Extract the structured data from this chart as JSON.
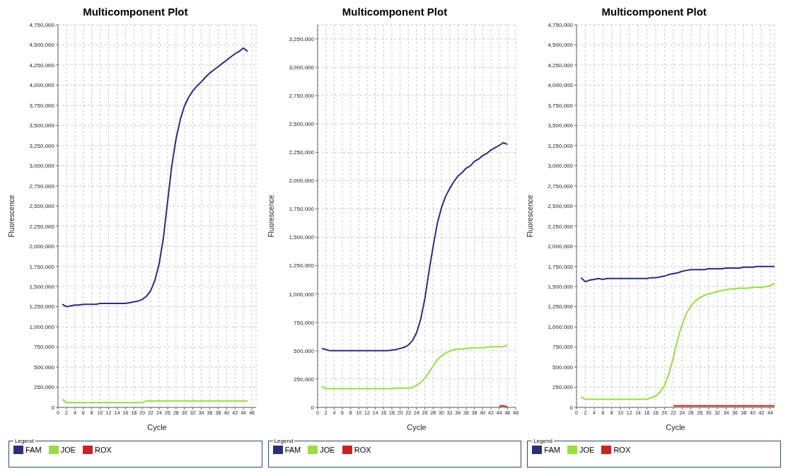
{
  "chart_data": [
    {
      "type": "line",
      "title": "Multicomponent Plot",
      "xlabel": "Cycle",
      "ylabel": "Fluorescence",
      "legend_title": "Legend",
      "legend": "bottom",
      "grid": true,
      "marker": "none",
      "line_style": "solid",
      "x": [
        1,
        2,
        3,
        4,
        5,
        6,
        7,
        8,
        9,
        10,
        11,
        12,
        13,
        14,
        15,
        16,
        17,
        18,
        19,
        20,
        21,
        22,
        23,
        24,
        25,
        26,
        27,
        28,
        29,
        30,
        31,
        32,
        33,
        34,
        35,
        36,
        37,
        38,
        39,
        40,
        41,
        42,
        43,
        44,
        45
      ],
      "xlim": [
        0,
        47
      ],
      "xticks": [
        0,
        2,
        4,
        6,
        8,
        10,
        12,
        14,
        16,
        18,
        20,
        22,
        24,
        26,
        28,
        30,
        32,
        34,
        36,
        38,
        40,
        42,
        44,
        46
      ],
      "ylim": [
        0,
        4750000
      ],
      "yticks": [
        {
          "value": 0,
          "label": "0"
        },
        {
          "value": 250000,
          "label": "250,000"
        },
        {
          "value": 500000,
          "label": "500,000"
        },
        {
          "value": 750000,
          "label": "750,000"
        },
        {
          "value": 1000000,
          "label": "1,000,000"
        },
        {
          "value": 1250000,
          "label": "1,250,000"
        },
        {
          "value": 1500000,
          "label": "1,500,000"
        },
        {
          "value": 1750000,
          "label": "1,750,000"
        },
        {
          "value": 2000000,
          "label": "2,000,000"
        },
        {
          "value": 2250000,
          "label": "2,250,000"
        },
        {
          "value": 2500000,
          "label": "2,500,000"
        },
        {
          "value": 2750000,
          "label": "2,750,000"
        },
        {
          "value": 3000000,
          "label": "3,000,000"
        },
        {
          "value": 3250000,
          "label": "3,250,000"
        },
        {
          "value": 3500000,
          "label": "3,500,000"
        },
        {
          "value": 3750000,
          "label": "3,750,000"
        },
        {
          "value": 4000000,
          "label": "4,000,000"
        },
        {
          "value": 4250000,
          "label": "4,250,000"
        },
        {
          "value": 4500000,
          "label": "4,500,000"
        },
        {
          "value": 4750000,
          "label": "4,750,000"
        }
      ],
      "series": [
        {
          "name": "FAM",
          "color": "#2b2f7a",
          "values": [
            1280000,
            1250000,
            1260000,
            1270000,
            1270000,
            1280000,
            1280000,
            1280000,
            1280000,
            1290000,
            1290000,
            1290000,
            1290000,
            1290000,
            1290000,
            1290000,
            1300000,
            1310000,
            1320000,
            1340000,
            1380000,
            1450000,
            1580000,
            1780000,
            2100000,
            2550000,
            3000000,
            3330000,
            3570000,
            3740000,
            3850000,
            3930000,
            3990000,
            4040000,
            4100000,
            4150000,
            4190000,
            4230000,
            4270000,
            4310000,
            4350000,
            4390000,
            4420000,
            4460000,
            4420000
          ]
        },
        {
          "name": "JOE",
          "color": "#99dd44",
          "values": [
            100000,
            60000,
            60000,
            60000,
            60000,
            60000,
            60000,
            60000,
            60000,
            60000,
            60000,
            60000,
            60000,
            60000,
            60000,
            60000,
            60000,
            60000,
            60000,
            60000,
            80000,
            80000,
            80000,
            80000,
            80000,
            80000,
            80000,
            80000,
            80000,
            80000,
            80000,
            80000,
            80000,
            80000,
            80000,
            80000,
            80000,
            80000,
            80000,
            80000,
            80000,
            80000,
            80000,
            80000,
            80000
          ]
        },
        {
          "name": "ROX",
          "color": "#cc2222",
          "values": [
            null,
            null,
            null,
            null,
            null,
            null,
            null,
            null,
            null,
            null,
            null,
            null,
            null,
            null,
            null,
            null,
            null,
            null,
            null,
            null,
            null,
            null,
            null,
            null,
            null,
            null,
            null,
            null,
            null,
            null,
            null,
            null,
            null,
            null,
            null,
            null,
            null,
            null,
            null,
            null,
            null,
            null,
            null,
            null,
            null
          ]
        }
      ]
    },
    {
      "type": "line",
      "title": "Multicomponent Plot",
      "xlabel": "Cycle",
      "ylabel": "Fluorescence",
      "legend_title": "Legend",
      "legend": "bottom",
      "grid": true,
      "marker": "none",
      "line_style": "solid",
      "x": [
        1,
        2,
        3,
        4,
        5,
        6,
        7,
        8,
        9,
        10,
        11,
        12,
        13,
        14,
        15,
        16,
        17,
        18,
        19,
        20,
        21,
        22,
        23,
        24,
        25,
        26,
        27,
        28,
        29,
        30,
        31,
        32,
        33,
        34,
        35,
        36,
        37,
        38,
        39,
        40,
        41,
        42,
        43,
        44,
        45,
        46
      ],
      "xlim": [
        0,
        48
      ],
      "xticks": [
        0,
        2,
        4,
        6,
        8,
        10,
        12,
        14,
        16,
        18,
        20,
        22,
        24,
        26,
        28,
        30,
        32,
        34,
        36,
        38,
        40,
        42,
        44,
        46,
        48
      ],
      "ylim": [
        0,
        3375000
      ],
      "yticks": [
        {
          "value": 0,
          "label": "0"
        },
        {
          "value": 250000,
          "label": "250,000"
        },
        {
          "value": 500000,
          "label": "500,000"
        },
        {
          "value": 750000,
          "label": "750,000"
        },
        {
          "value": 1000000,
          "label": "1,000,000"
        },
        {
          "value": 1250000,
          "label": "1,250,000"
        },
        {
          "value": 1500000,
          "label": "1,500,000"
        },
        {
          "value": 1750000,
          "label": "1,750,000"
        },
        {
          "value": 2000000,
          "label": "2,000,000"
        },
        {
          "value": 2250000,
          "label": "2,250,000"
        },
        {
          "value": 2500000,
          "label": "2,500,000"
        },
        {
          "value": 2750000,
          "label": "2,750,000"
        },
        {
          "value": 3000000,
          "label": "3,000,000"
        },
        {
          "value": 3250000,
          "label": "3,250,000"
        }
      ],
      "series": [
        {
          "name": "FAM",
          "color": "#2b2f7a",
          "values": [
            520000,
            510000,
            500000,
            500000,
            500000,
            500000,
            500000,
            500000,
            500000,
            500000,
            500000,
            500000,
            500000,
            500000,
            500000,
            500000,
            500000,
            505000,
            510000,
            520000,
            530000,
            550000,
            590000,
            660000,
            780000,
            960000,
            1200000,
            1420000,
            1620000,
            1760000,
            1860000,
            1930000,
            1990000,
            2040000,
            2070000,
            2110000,
            2130000,
            2170000,
            2190000,
            2220000,
            2240000,
            2270000,
            2290000,
            2310000,
            2335000,
            2320000
          ]
        },
        {
          "name": "JOE",
          "color": "#99dd44",
          "values": [
            185000,
            165000,
            165000,
            165000,
            165000,
            165000,
            165000,
            165000,
            165000,
            165000,
            165000,
            165000,
            165000,
            165000,
            165000,
            165000,
            165000,
            165000,
            170000,
            170000,
            170000,
            170000,
            175000,
            195000,
            220000,
            260000,
            310000,
            365000,
            420000,
            455000,
            480000,
            495000,
            510000,
            515000,
            515000,
            520000,
            525000,
            525000,
            525000,
            525000,
            530000,
            535000,
            535000,
            535000,
            535000,
            550000
          ]
        },
        {
          "name": "ROX",
          "color": "#cc2222",
          "values": [
            null,
            null,
            null,
            null,
            null,
            null,
            null,
            null,
            null,
            null,
            null,
            null,
            null,
            null,
            null,
            null,
            null,
            null,
            null,
            null,
            null,
            null,
            null,
            null,
            null,
            null,
            null,
            null,
            null,
            null,
            null,
            null,
            null,
            null,
            null,
            null,
            null,
            null,
            null,
            null,
            null,
            null,
            null,
            10000,
            15000,
            5000
          ]
        }
      ]
    },
    {
      "type": "line",
      "title": "Multicomponent Plot",
      "xlabel": "Cycle",
      "ylabel": "Fluorescence",
      "legend_title": "Legend",
      "legend": "bottom",
      "grid": true,
      "marker": "none",
      "line_style": "solid",
      "x": [
        1,
        2,
        3,
        4,
        5,
        6,
        7,
        8,
        9,
        10,
        11,
        12,
        13,
        14,
        15,
        16,
        17,
        18,
        19,
        20,
        21,
        22,
        23,
        24,
        25,
        26,
        27,
        28,
        29,
        30,
        31,
        32,
        33,
        34,
        35,
        36,
        37,
        38,
        39,
        40,
        41,
        42,
        43,
        44,
        45
      ],
      "xlim": [
        0,
        45
      ],
      "xticks": [
        0,
        2,
        4,
        6,
        8,
        10,
        12,
        14,
        16,
        18,
        20,
        22,
        24,
        26,
        28,
        30,
        32,
        34,
        36,
        38,
        40,
        42,
        44
      ],
      "ylim": [
        0,
        4750000
      ],
      "yticks": [
        {
          "value": 0,
          "label": "0"
        },
        {
          "value": 250000,
          "label": "250,000"
        },
        {
          "value": 500000,
          "label": "500,000"
        },
        {
          "value": 750000,
          "label": "750,000"
        },
        {
          "value": 1000000,
          "label": "1,000,000"
        },
        {
          "value": 1250000,
          "label": "1,250,000"
        },
        {
          "value": 1500000,
          "label": "1,500,000"
        },
        {
          "value": 1750000,
          "label": "1,750,000"
        },
        {
          "value": 2000000,
          "label": "2,000,000"
        },
        {
          "value": 2250000,
          "label": "2,250,000"
        },
        {
          "value": 2500000,
          "label": "2,500,000"
        },
        {
          "value": 2750000,
          "label": "2,750,000"
        },
        {
          "value": 3000000,
          "label": "3,000,000"
        },
        {
          "value": 3250000,
          "label": "3,250,000"
        },
        {
          "value": 3500000,
          "label": "3,500,000"
        },
        {
          "value": 3750000,
          "label": "3,750,000"
        },
        {
          "value": 4000000,
          "label": "4,000,000"
        },
        {
          "value": 4250000,
          "label": "4,250,000"
        },
        {
          "value": 4500000,
          "label": "4,500,000"
        },
        {
          "value": 4750000,
          "label": "4,750,000"
        }
      ],
      "series": [
        {
          "name": "FAM",
          "color": "#2b2f7a",
          "values": [
            1610000,
            1560000,
            1580000,
            1590000,
            1600000,
            1590000,
            1600000,
            1600000,
            1600000,
            1600000,
            1600000,
            1600000,
            1600000,
            1600000,
            1600000,
            1600000,
            1610000,
            1610000,
            1620000,
            1630000,
            1650000,
            1660000,
            1670000,
            1690000,
            1700000,
            1710000,
            1710000,
            1710000,
            1710000,
            1720000,
            1720000,
            1720000,
            1720000,
            1730000,
            1730000,
            1730000,
            1730000,
            1740000,
            1740000,
            1740000,
            1750000,
            1750000,
            1750000,
            1750000,
            1750000
          ]
        },
        {
          "name": "JOE",
          "color": "#99dd44",
          "values": [
            130000,
            100000,
            100000,
            100000,
            100000,
            100000,
            100000,
            100000,
            100000,
            100000,
            100000,
            100000,
            100000,
            100000,
            100000,
            100000,
            120000,
            140000,
            190000,
            270000,
            420000,
            620000,
            850000,
            1030000,
            1170000,
            1260000,
            1320000,
            1360000,
            1390000,
            1410000,
            1420000,
            1440000,
            1450000,
            1460000,
            1470000,
            1470000,
            1480000,
            1480000,
            1480000,
            1490000,
            1490000,
            1490000,
            1500000,
            1510000,
            1540000
          ]
        },
        {
          "name": "ROX",
          "color": "#cc2222",
          "values": [
            null,
            null,
            null,
            null,
            null,
            null,
            null,
            null,
            null,
            null,
            null,
            null,
            null,
            null,
            null,
            null,
            null,
            null,
            null,
            null,
            null,
            20000,
            20000,
            20000,
            20000,
            20000,
            20000,
            20000,
            20000,
            20000,
            20000,
            20000,
            20000,
            20000,
            20000,
            20000,
            20000,
            20000,
            20000,
            20000,
            20000,
            20000,
            20000,
            20000,
            20000
          ]
        }
      ]
    }
  ]
}
